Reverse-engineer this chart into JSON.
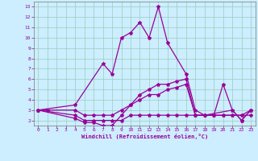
{
  "xlabel": "Windchill (Refroidissement éolien,°C)",
  "bg_color": "#cceeff",
  "line_color": "#990099",
  "grid_color": "#99ccbb",
  "xlim": [
    -0.5,
    23.5
  ],
  "ylim": [
    1.5,
    13.5
  ],
  "xticks": [
    0,
    1,
    2,
    3,
    4,
    5,
    6,
    7,
    8,
    9,
    10,
    11,
    12,
    13,
    14,
    15,
    16,
    17,
    18,
    19,
    20,
    21,
    22,
    23
  ],
  "yticks": [
    2,
    3,
    4,
    5,
    6,
    7,
    8,
    9,
    10,
    11,
    12,
    13
  ],
  "line1_x": [
    0,
    4,
    7,
    8,
    9,
    10,
    11,
    12,
    13,
    14,
    16,
    17,
    18,
    21,
    22,
    23
  ],
  "line1_y": [
    3,
    3.5,
    7.5,
    6.5,
    10,
    10.5,
    11.5,
    10,
    13,
    9.5,
    6.5,
    3,
    2.5,
    3,
    2,
    3
  ],
  "line2_x": [
    0,
    1,
    4,
    5,
    6,
    7,
    8,
    9,
    10,
    11,
    12,
    13,
    14,
    15,
    16,
    17,
    18,
    19,
    20,
    21,
    22,
    23
  ],
  "line2_y": [
    3,
    3,
    3,
    2.5,
    2.5,
    2.5,
    2.5,
    3,
    3.5,
    4,
    4.5,
    4.5,
    5,
    5.2,
    5.5,
    2.5,
    2.5,
    2.5,
    2.5,
    2.5,
    2.5,
    3
  ],
  "line3_x": [
    0,
    4,
    5,
    6,
    7,
    8,
    9,
    10,
    11,
    12,
    13,
    14,
    15,
    16,
    17,
    18,
    19,
    20,
    21,
    22,
    23
  ],
  "line3_y": [
    3,
    2.5,
    2,
    2,
    2,
    2,
    2,
    2.5,
    2.5,
    2.5,
    2.5,
    2.5,
    2.5,
    2.5,
    2.5,
    2.5,
    2.5,
    2.5,
    2.5,
    2.5,
    2.5
  ],
  "line4_x": [
    0,
    4,
    5,
    6,
    7,
    8,
    9,
    10,
    11,
    12,
    13,
    14,
    15,
    16,
    17,
    18,
    19,
    20,
    21,
    22,
    23
  ],
  "line4_y": [
    3,
    2.2,
    1.8,
    1.8,
    1.5,
    1.5,
    2.5,
    3.5,
    4.5,
    5,
    5.5,
    5.5,
    5.8,
    6,
    2.5,
    2.5,
    2.5,
    5.5,
    3,
    2,
    3
  ]
}
